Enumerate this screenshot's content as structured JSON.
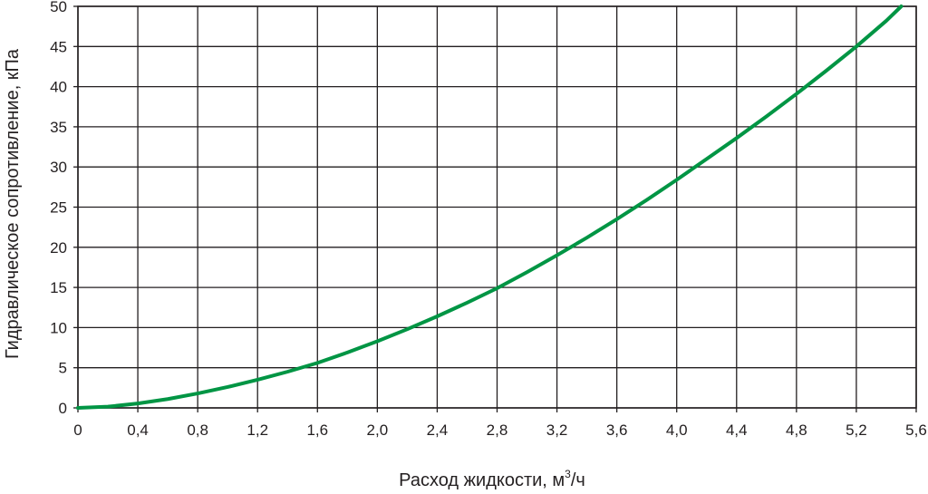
{
  "chart_data": {
    "type": "line",
    "title": "",
    "xlabel_main": "Расход жидкости, м",
    "xlabel_sup": "3",
    "xlabel_tail": "/ч",
    "ylabel": "Гидравлическое сопротивление, кПа",
    "xlim": [
      0,
      5.6
    ],
    "ylim": [
      0,
      50
    ],
    "x_ticks": [
      "0",
      "0,4",
      "0,8",
      "1,2",
      "1,6",
      "2,0",
      "2,4",
      "2,8",
      "3,2",
      "3,6",
      "4,0",
      "4,4",
      "4,8",
      "5,2",
      "5,6"
    ],
    "y_ticks": [
      "0",
      "5",
      "10",
      "15",
      "20",
      "25",
      "30",
      "35",
      "40",
      "45",
      "50"
    ],
    "grid": true,
    "series": [
      {
        "color": "#009544",
        "x": [
          0,
          0.2,
          0.4,
          0.6,
          0.8,
          1.0,
          1.2,
          1.4,
          1.6,
          1.8,
          2.0,
          2.2,
          2.4,
          2.6,
          2.8,
          3.0,
          3.2,
          3.4,
          3.6,
          3.8,
          4.0,
          4.2,
          4.4,
          4.6,
          4.8,
          5.0,
          5.2,
          5.4,
          5.5
        ],
        "y": [
          0,
          0.15,
          0.55,
          1.1,
          1.8,
          2.6,
          3.5,
          4.5,
          5.6,
          6.9,
          8.3,
          9.8,
          11.4,
          13.1,
          14.9,
          16.9,
          19.0,
          21.2,
          23.5,
          25.9,
          28.4,
          31.0,
          33.6,
          36.3,
          39.1,
          42.0,
          45.0,
          48.2,
          50.0
        ]
      }
    ]
  }
}
